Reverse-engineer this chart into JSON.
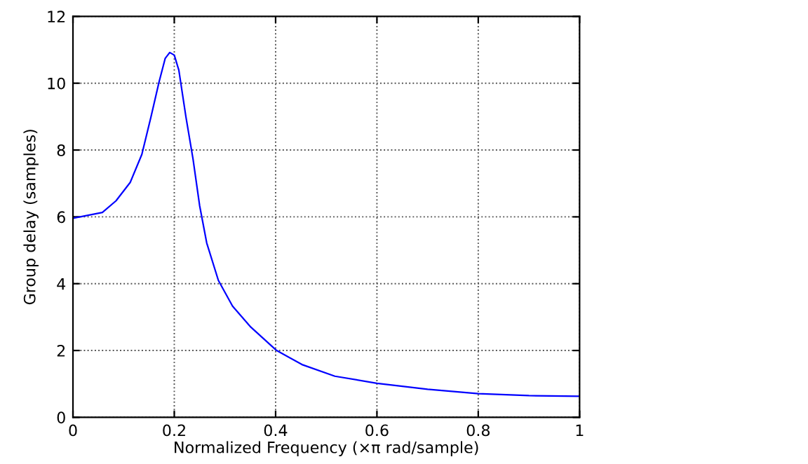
{
  "chart_data": {
    "type": "line",
    "xlabel": "Normalized Frequency (×π rad/sample)",
    "ylabel": "Group delay (samples)",
    "x": [
      0,
      0.058,
      0.085,
      0.113,
      0.136,
      0.154,
      0.17,
      0.182,
      0.191,
      0.2,
      0.209,
      0.223,
      0.237,
      0.25,
      0.264,
      0.287,
      0.315,
      0.351,
      0.402,
      0.452,
      0.517,
      0.6,
      0.7,
      0.8,
      0.9,
      1.0
    ],
    "series": [
      {
        "color": "#0000ff",
        "values": [
          5.96,
          6.13,
          6.48,
          7.03,
          7.87,
          8.99,
          10.04,
          10.74,
          10.92,
          10.84,
          10.39,
          8.99,
          7.73,
          6.34,
          5.22,
          4.1,
          3.33,
          2.7,
          2.0,
          1.58,
          1.23,
          1.02,
          0.84,
          0.71,
          0.65,
          0.63
        ]
      }
    ],
    "xlim": [
      0,
      1
    ],
    "ylim": [
      0,
      12
    ],
    "xticks": [
      0,
      0.2,
      0.4,
      0.6,
      0.8,
      1
    ],
    "yticks": [
      0,
      2,
      4,
      6,
      8,
      10,
      12
    ],
    "grid": true,
    "line_style": "solid",
    "marker": "none"
  }
}
